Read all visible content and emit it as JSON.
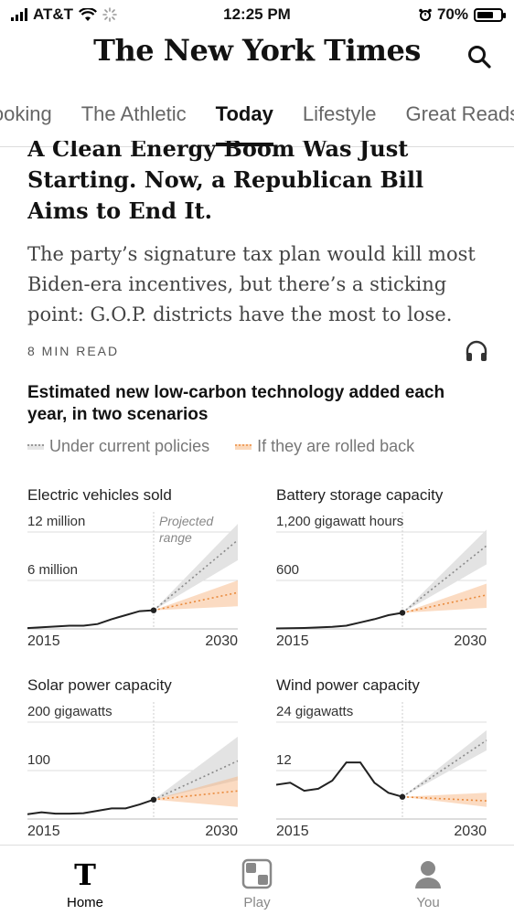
{
  "status_bar": {
    "carrier": "AT&T",
    "time": "12:25 PM",
    "battery": "70%",
    "battery_level": 0.7
  },
  "header": {
    "masthead": "The New York Times",
    "search_icon": "search-icon"
  },
  "tabs": [
    {
      "label": "Cooking",
      "active": false
    },
    {
      "label": "The Athletic",
      "active": false
    },
    {
      "label": "Today",
      "active": true
    },
    {
      "label": "Lifestyle",
      "active": false
    },
    {
      "label": "Great Reads",
      "active": false
    }
  ],
  "article": {
    "headline": "A Clean Energy Boom Was Just Starting. Now, a Republican Bill Aims to End It.",
    "summary": "The party’s signature tax plan would kill most Biden-era incentives, but there’s a sticking point: G.O.P. districts have the most to lose.",
    "read_time": "8 MIN READ",
    "audio_icon": "headphones-icon"
  },
  "chart_block": {
    "title": "Estimated new low-carbon technology added each year, in two scenarios",
    "legend": [
      {
        "label": "Under current policies",
        "color": "#9a9a9a"
      },
      {
        "label": "If they are rolled back",
        "color": "#f0a060"
      }
    ]
  },
  "chart_data": [
    {
      "type": "line",
      "title": "Electric vehicles sold",
      "tick_labels": {
        "y_top": "12 million",
        "y_mid": "6 million",
        "x_start": "2015",
        "x_end": "2030"
      },
      "annotation": "Projected range",
      "xlim": [
        2015,
        2030
      ],
      "ylim": [
        0,
        12
      ],
      "series": [
        {
          "x": [
            2015,
            2016,
            2017,
            2018,
            2019,
            2020,
            2021,
            2022,
            2023,
            2024
          ],
          "values": [
            0.1,
            0.2,
            0.3,
            0.4,
            0.4,
            0.6,
            1.2,
            1.7,
            2.2,
            2.3
          ]
        }
      ],
      "projection": {
        "x": [
          2024,
          2030
        ],
        "current": {
          "values": [
            2.3,
            11.0
          ],
          "band": [
            [
              2.3,
              2.3
            ],
            [
              8.5,
              13.0
            ]
          ]
        },
        "rolled_back": {
          "values": [
            2.3,
            4.5
          ],
          "band": [
            [
              2.3,
              2.3
            ],
            [
              2.8,
              6.0
            ]
          ]
        }
      }
    },
    {
      "type": "line",
      "title": "Battery storage capacity",
      "tick_labels": {
        "y_top": "1,200 gigawatt hours",
        "y_mid": "600",
        "x_start": "2015",
        "x_end": "2030"
      },
      "xlim": [
        2015,
        2030
      ],
      "ylim": [
        0,
        1200
      ],
      "series": [
        {
          "x": [
            2015,
            2016,
            2017,
            2018,
            2019,
            2020,
            2021,
            2022,
            2023,
            2024
          ],
          "values": [
            5,
            8,
            12,
            18,
            25,
            40,
            80,
            120,
            170,
            200
          ]
        }
      ],
      "projection": {
        "x": [
          2024,
          2030
        ],
        "current": {
          "values": [
            200,
            1030
          ],
          "band": [
            [
              200,
              200
            ],
            [
              800,
              1230
            ]
          ]
        },
        "rolled_back": {
          "values": [
            200,
            420
          ],
          "band": [
            [
              200,
              200
            ],
            [
              260,
              560
            ]
          ]
        }
      }
    },
    {
      "type": "line",
      "title": "Solar power capacity",
      "tick_labels": {
        "y_top": "200 gigawatts",
        "y_mid": "100",
        "x_start": "2015",
        "x_end": "2030"
      },
      "xlim": [
        2015,
        2030
      ],
      "ylim": [
        0,
        200
      ],
      "series": [
        {
          "x": [
            2015,
            2016,
            2017,
            2018,
            2019,
            2020,
            2021,
            2022,
            2023,
            2024
          ],
          "values": [
            10,
            14,
            11,
            11,
            12,
            17,
            22,
            22,
            30,
            40
          ]
        }
      ],
      "projection": {
        "x": [
          2024,
          2030
        ],
        "current": {
          "values": [
            40,
            120
          ],
          "band": [
            [
              40,
              40
            ],
            [
              80,
              170
            ]
          ]
        },
        "rolled_back": {
          "values": [
            40,
            58
          ],
          "band": [
            [
              40,
              40
            ],
            [
              25,
              88
            ]
          ]
        }
      }
    },
    {
      "type": "line",
      "title": "Wind power capacity",
      "tick_labels": {
        "y_top": "24 gigawatts",
        "y_mid": "12",
        "x_start": "2015",
        "x_end": "2030"
      },
      "xlim": [
        2015,
        2030
      ],
      "ylim": [
        0,
        24
      ],
      "series": [
        {
          "x": [
            2015,
            2016,
            2017,
            2018,
            2019,
            2020,
            2021,
            2022,
            2023,
            2024
          ],
          "values": [
            8.5,
            9.0,
            7.0,
            7.5,
            9.5,
            14.0,
            14.0,
            9.0,
            6.5,
            5.5
          ]
        }
      ],
      "projection": {
        "x": [
          2024,
          2030
        ],
        "current": {
          "values": [
            5.5,
            19.5
          ],
          "band": [
            [
              5.5,
              5.5
            ],
            [
              17.0,
              22.0
            ]
          ]
        },
        "rolled_back": {
          "values": [
            5.5,
            4.5
          ],
          "band": [
            [
              5.5,
              5.5
            ],
            [
              3.0,
              6.5
            ]
          ]
        }
      }
    }
  ],
  "bottom_nav": [
    {
      "label": "Home",
      "icon": "nyt-logo-icon",
      "active": true
    },
    {
      "label": "Play",
      "icon": "games-grid-icon",
      "active": false
    },
    {
      "label": "You",
      "icon": "person-icon",
      "active": false
    }
  ]
}
